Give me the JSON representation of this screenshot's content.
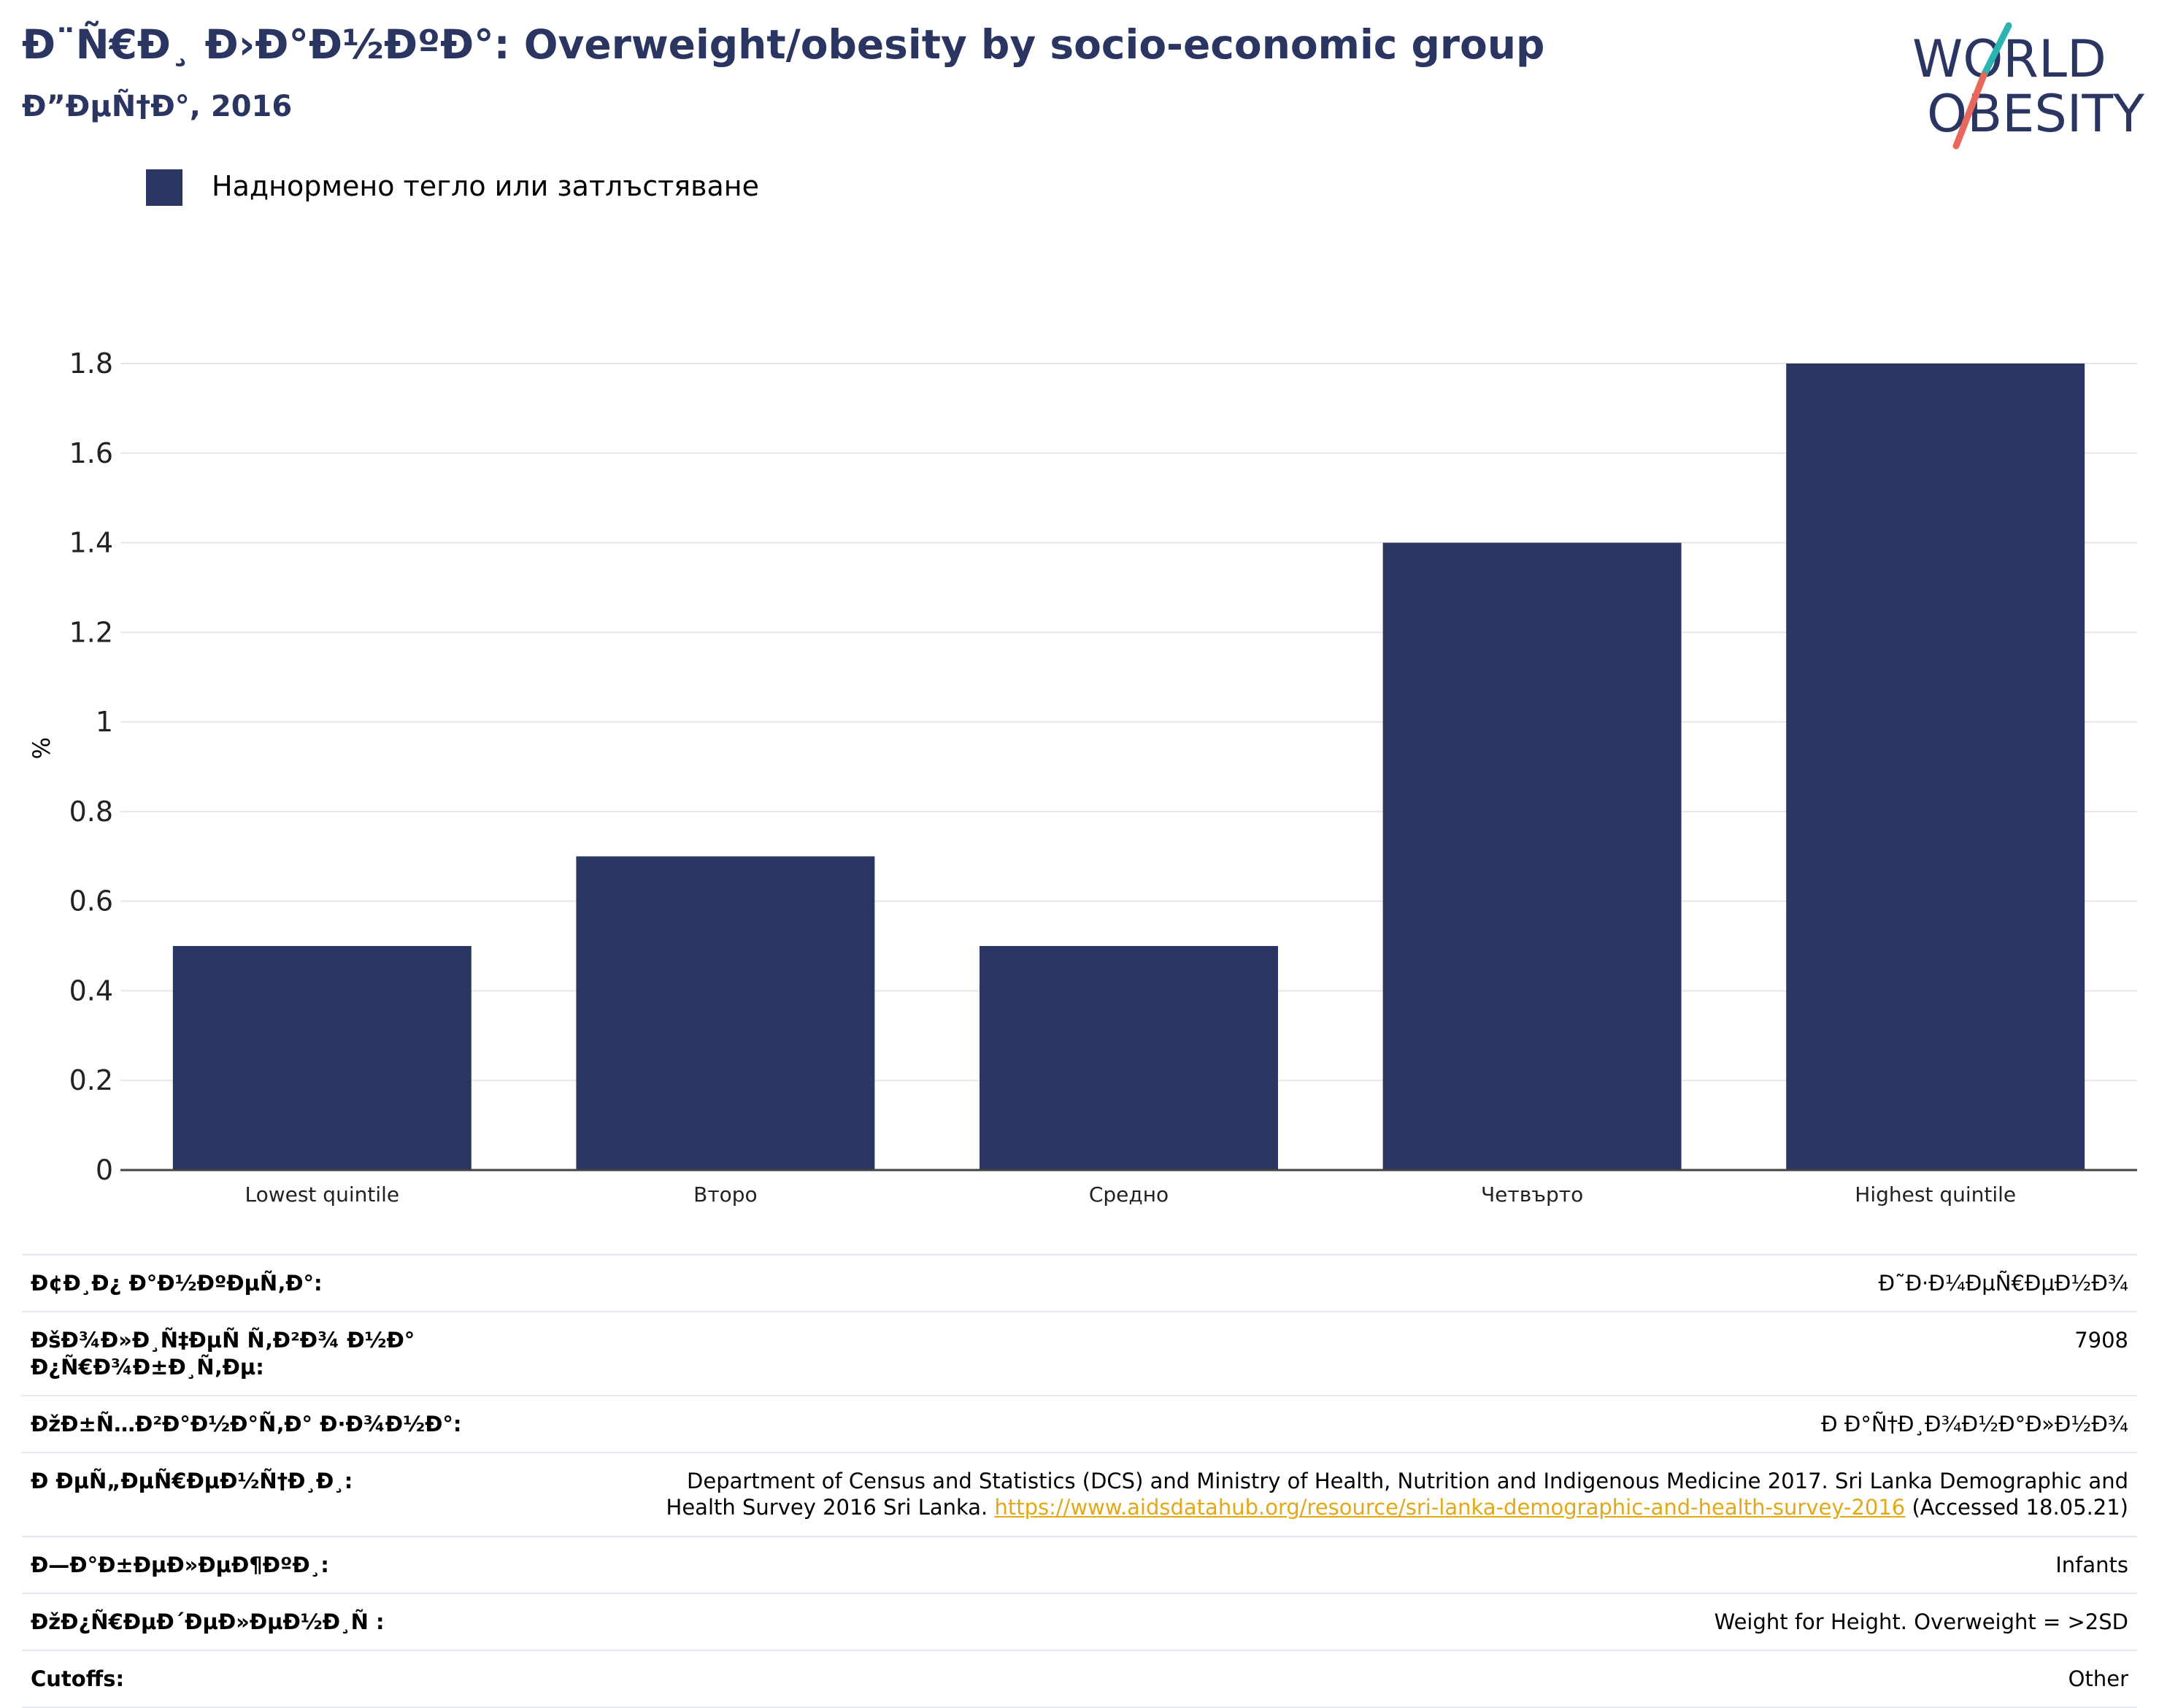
{
  "header": {
    "title": "Ð¨Ñ€Ð¸ Ð›Ð°Ð½ÐºÐ°: Overweight/obesity by socio-economic group",
    "subtitle": "Ð”ÐµÑ†Ð°, 2016"
  },
  "logo": {
    "line1": "WORLD",
    "line2": "OBESITY",
    "colors": {
      "text": "#2a3561",
      "slash_top": "#2bb3b1",
      "slash_bottom": "#e8695b"
    }
  },
  "legend": {
    "label": "Наднормено тегло или затлъстяване",
    "color": "#2a3561"
  },
  "chart_data": {
    "type": "bar",
    "categories": [
      "Lowest quintile",
      "Второ",
      "Средно",
      "Четвърто",
      "Highest quintile"
    ],
    "series": [
      {
        "name": "Наднормено тегло или затлъстяване",
        "values": [
          0.5,
          0.7,
          0.5,
          1.4,
          1.8
        ],
        "color": "#2a3561"
      }
    ],
    "ylabel": "%",
    "ylim": [
      0,
      1.8
    ],
    "yticks": [
      "0",
      "0.2",
      "0.4",
      "0.6",
      "0.8",
      "1",
      "1.2",
      "1.4",
      "1.6",
      "1.8"
    ],
    "grid": true
  },
  "meta": {
    "rows": [
      {
        "label": "Ð¢Ð¸Ð¿ Ð°Ð½ÐºÐµÑ‚Ð°:",
        "value": "Ð˜Ð·Ð¼ÐµÑ€ÐµÐ½Ð¾"
      },
      {
        "label": "ÐšÐ¾Ð»Ð¸Ñ‡ÐµÑ Ñ‚Ð²Ð¾ Ð½Ð° Ð¿Ñ€Ð¾Ð±Ð¸Ñ‚Ðµ:",
        "value": "7908"
      },
      {
        "label": "ÐžÐ±Ñ…Ð²Ð°Ð½Ð°Ñ‚Ð° Ð·Ð¾Ð½Ð°:",
        "value": "Ð Ð°Ñ†Ð¸Ð¾Ð½Ð°Ð»Ð½Ð¾"
      }
    ],
    "reference": {
      "label": "Ð ÐµÑ„ÐµÑ€ÐµÐ½Ñ†Ð¸Ð¸:",
      "text_line1": "Department of Census and Statistics (DCS) and Ministry of Health, Nutrition and Indigenous Medicine 2017. Sri Lanka Demographic and",
      "text_line2": "Health Survey 2016 Sri Lanka.",
      "link": "https://www.aidsdatahub.org/resource/sri-lanka-demographic-and-health-survey-2016",
      "accessed": "(Accessed 18.05.21)"
    },
    "rows2": [
      {
        "label": "Ð—Ð°Ð±ÐµÐ»ÐµÐ¶ÐºÐ¸:",
        "value": "Infants"
      },
      {
        "label": "ÐžÐ¿Ñ€ÐµÐ´ÐµÐ»ÐµÐ½Ð¸Ñ :",
        "value": "Weight for Height. Overweight = >2SD"
      },
      {
        "label": "Cutoffs:",
        "value": "Other"
      }
    ]
  }
}
